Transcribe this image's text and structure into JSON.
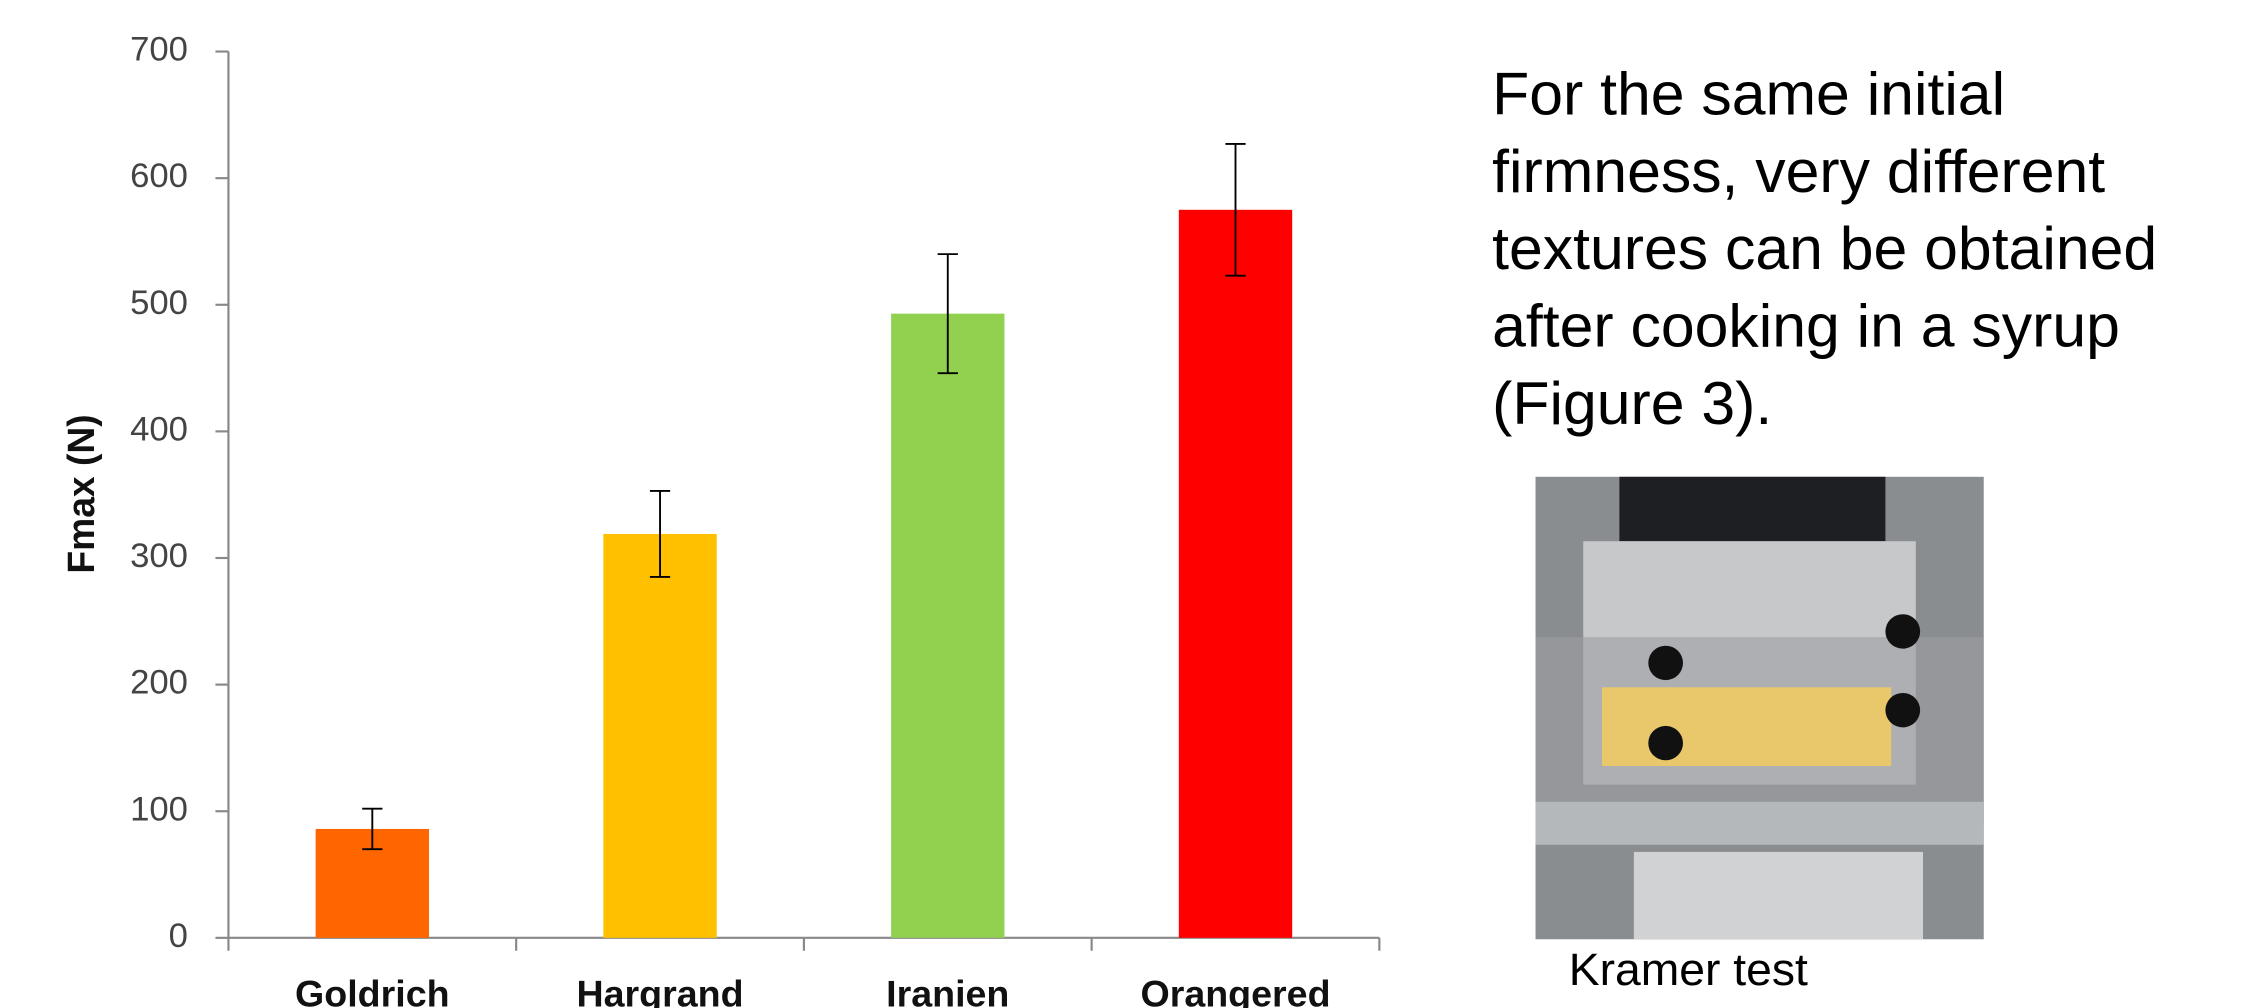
{
  "chart_data": {
    "type": "bar",
    "y_label": "Fmax (N)",
    "categories": [
      "Goldrich",
      "Hargrand",
      "Iranien",
      "Orangered"
    ],
    "values": [
      86,
      319,
      493,
      575
    ],
    "errors": [
      16,
      34,
      47,
      52
    ],
    "colors": [
      "#ff6600",
      "#ffc000",
      "#92d050",
      "#ff0000"
    ],
    "ylim": [
      0,
      700
    ],
    "yticks": [
      0,
      100,
      200,
      300,
      400,
      500,
      600,
      700
    ],
    "grid": false
  },
  "side_text": {
    "lines": [
      "For the same initial",
      "firmness, very different",
      "textures can be obtained",
      "after cooking in a syrup",
      "(Figure 3)."
    ],
    "caption": "Kramer test"
  }
}
